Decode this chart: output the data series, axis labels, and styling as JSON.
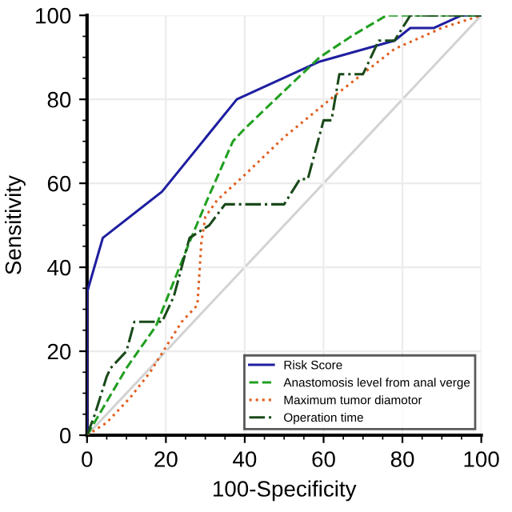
{
  "chart_data": {
    "type": "line",
    "xlabel": "100-Specificity",
    "ylabel": "Sensitivity",
    "xlim": [
      0,
      100
    ],
    "ylim": [
      0,
      100
    ],
    "xticks": [
      0,
      20,
      40,
      60,
      80,
      100
    ],
    "yticks": [
      0,
      20,
      40,
      60,
      80,
      100
    ],
    "grid": true,
    "legend": "bottom right",
    "marker": "none",
    "series": [
      {
        "name": "Risk Score",
        "color": "#1f1fa0",
        "line_style": "solid",
        "x": [
          0,
          0,
          4,
          19,
          38,
          59,
          78,
          82,
          88,
          95,
          100
        ],
        "values": [
          0,
          34,
          47,
          58,
          80,
          89,
          94,
          97,
          97,
          100,
          100
        ]
      },
      {
        "name": "Anastomosis level from anal verge",
        "color": "#22a022",
        "line_style": "dashed",
        "x": [
          0,
          5,
          10,
          17.5,
          26,
          30,
          37,
          40,
          50,
          59,
          67,
          76,
          100
        ],
        "values": [
          0,
          8,
          16,
          26,
          46,
          55,
          70,
          73,
          82,
          90,
          95,
          100,
          100
        ]
      },
      {
        "name": "Maximum tumor diamotor",
        "color": "#e06020",
        "line_style": "dotted",
        "x": [
          0,
          5,
          11,
          16,
          24,
          28,
          29,
          30,
          33,
          40,
          50,
          63,
          78,
          90,
          100
        ],
        "values": [
          0,
          3,
          9,
          15,
          27,
          31,
          46,
          52,
          56,
          62,
          71,
          81,
          92,
          97,
          100
        ]
      },
      {
        "name": "Operation time",
        "color": "#1a4a1a",
        "line_style": "dashdot",
        "x": [
          0,
          2,
          5,
          6,
          10,
          12,
          19,
          22,
          26,
          31,
          35,
          50,
          54,
          56,
          60,
          62,
          64,
          70,
          74,
          78,
          82,
          100
        ],
        "values": [
          0,
          5,
          14,
          16,
          20,
          27,
          27,
          33,
          47,
          50,
          55,
          55,
          61,
          61,
          75,
          75,
          86,
          86,
          94,
          94,
          100,
          100
        ]
      },
      {
        "color": "#d3d3d3",
        "line_style": "solid",
        "x": [
          0,
          100
        ],
        "values": [
          0,
          100
        ]
      }
    ]
  }
}
